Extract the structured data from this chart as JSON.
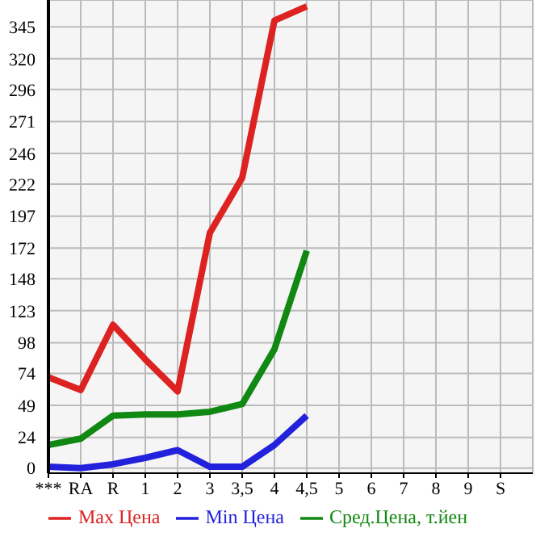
{
  "chart_data": {
    "type": "line",
    "categories": [
      "***",
      "RA",
      "R",
      "1",
      "2",
      "3",
      "3,5",
      "4",
      "4,5",
      "5",
      "6",
      "7",
      "8",
      "9",
      "S"
    ],
    "series": [
      {
        "name": "Max Цена",
        "color": "#dd2222",
        "values": [
          71,
          61,
          112,
          85,
          60,
          184,
          227,
          350,
          361,
          null,
          null,
          null,
          null,
          null,
          null
        ]
      },
      {
        "name": "Min Цена",
        "color": "#2222dd",
        "values": [
          1,
          0,
          3,
          8,
          14,
          1,
          1,
          18,
          41,
          null,
          null,
          null,
          null,
          null,
          null
        ]
      },
      {
        "name": "Сред.Цена, т.йен",
        "color": "#118811",
        "values": [
          18,
          23,
          41,
          42,
          42,
          44,
          50,
          93,
          170,
          null,
          null,
          null,
          null,
          null,
          null
        ]
      }
    ],
    "ylim": [
      -4,
      366
    ],
    "yticks": [
      0,
      24,
      49,
      74,
      98,
      123,
      148,
      172,
      197,
      222,
      246,
      271,
      296,
      320,
      345
    ],
    "grid": true,
    "legend": "bottom",
    "marker": "none"
  }
}
